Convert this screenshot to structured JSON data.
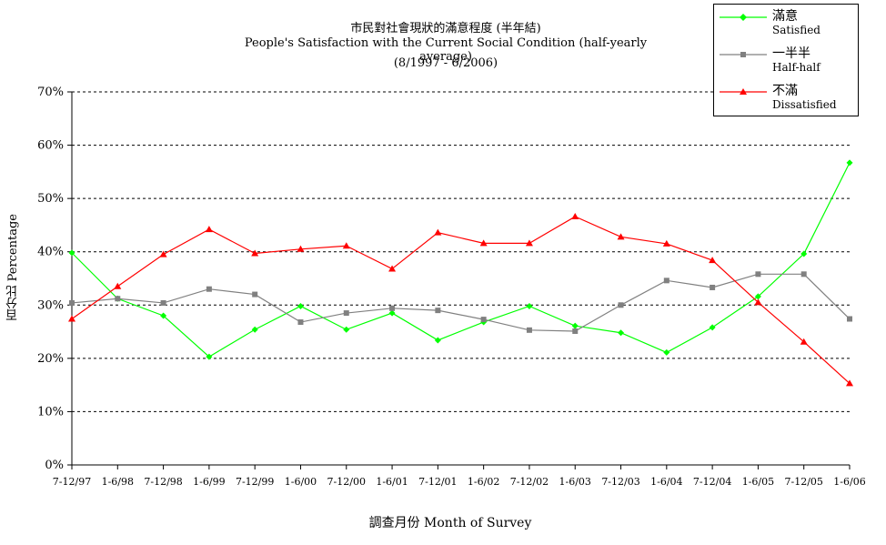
{
  "chart_data": {
    "type": "line",
    "title_zh": "市民對社會現狀的滿意程度 (半年結)",
    "title_en": "People's Satisfaction with the Current Social Condition (half-yearly average)",
    "subtitle": "(8/1997 - 6/2006)",
    "xlabel": "調查月份 Month of Survey",
    "ylabel": "百分比 Percentage",
    "ylim": [
      0,
      70
    ],
    "y_ticks": [
      "0%",
      "10%",
      "20%",
      "30%",
      "40%",
      "50%",
      "60%",
      "70%"
    ],
    "grid": "horizontal dashed",
    "legend_position": "top-right",
    "categories": [
      "7-12/97",
      "1-6/98",
      "7-12/98",
      "1-6/99",
      "7-12/99",
      "1-6/00",
      "7-12/00",
      "1-6/01",
      "7-12/01",
      "1-6/02",
      "7-12/02",
      "1-6/03",
      "7-12/03",
      "1-6/04",
      "7-12/04",
      "1-6/05",
      "7-12/05",
      "1-6/06"
    ],
    "series": [
      {
        "name_zh": "滿意",
        "name_en": "Satisfied",
        "color": "#00ff00",
        "marker": "diamond",
        "values": [
          39.8,
          31.2,
          28.0,
          20.3,
          25.4,
          29.8,
          25.4,
          28.5,
          23.4,
          26.8,
          29.8,
          26.1,
          24.8,
          21.1,
          25.8,
          31.6,
          39.6,
          56.7
        ]
      },
      {
        "name_zh": "一半半",
        "name_en": "Half-half",
        "color": "#808080",
        "marker": "square",
        "values": [
          30.4,
          31.2,
          30.4,
          33.0,
          32.0,
          26.8,
          28.5,
          29.4,
          29.0,
          27.3,
          25.3,
          25.1,
          30.0,
          34.6,
          33.3,
          35.8,
          35.8,
          27.4
        ]
      },
      {
        "name_zh": "不滿",
        "name_en": "Dissatisfied",
        "color": "#ff0000",
        "marker": "triangle",
        "values": [
          27.4,
          33.5,
          39.5,
          44.2,
          39.7,
          40.5,
          41.1,
          36.8,
          43.6,
          41.6,
          41.6,
          46.6,
          42.8,
          41.5,
          38.4,
          30.5,
          23.1,
          15.3
        ]
      }
    ]
  }
}
